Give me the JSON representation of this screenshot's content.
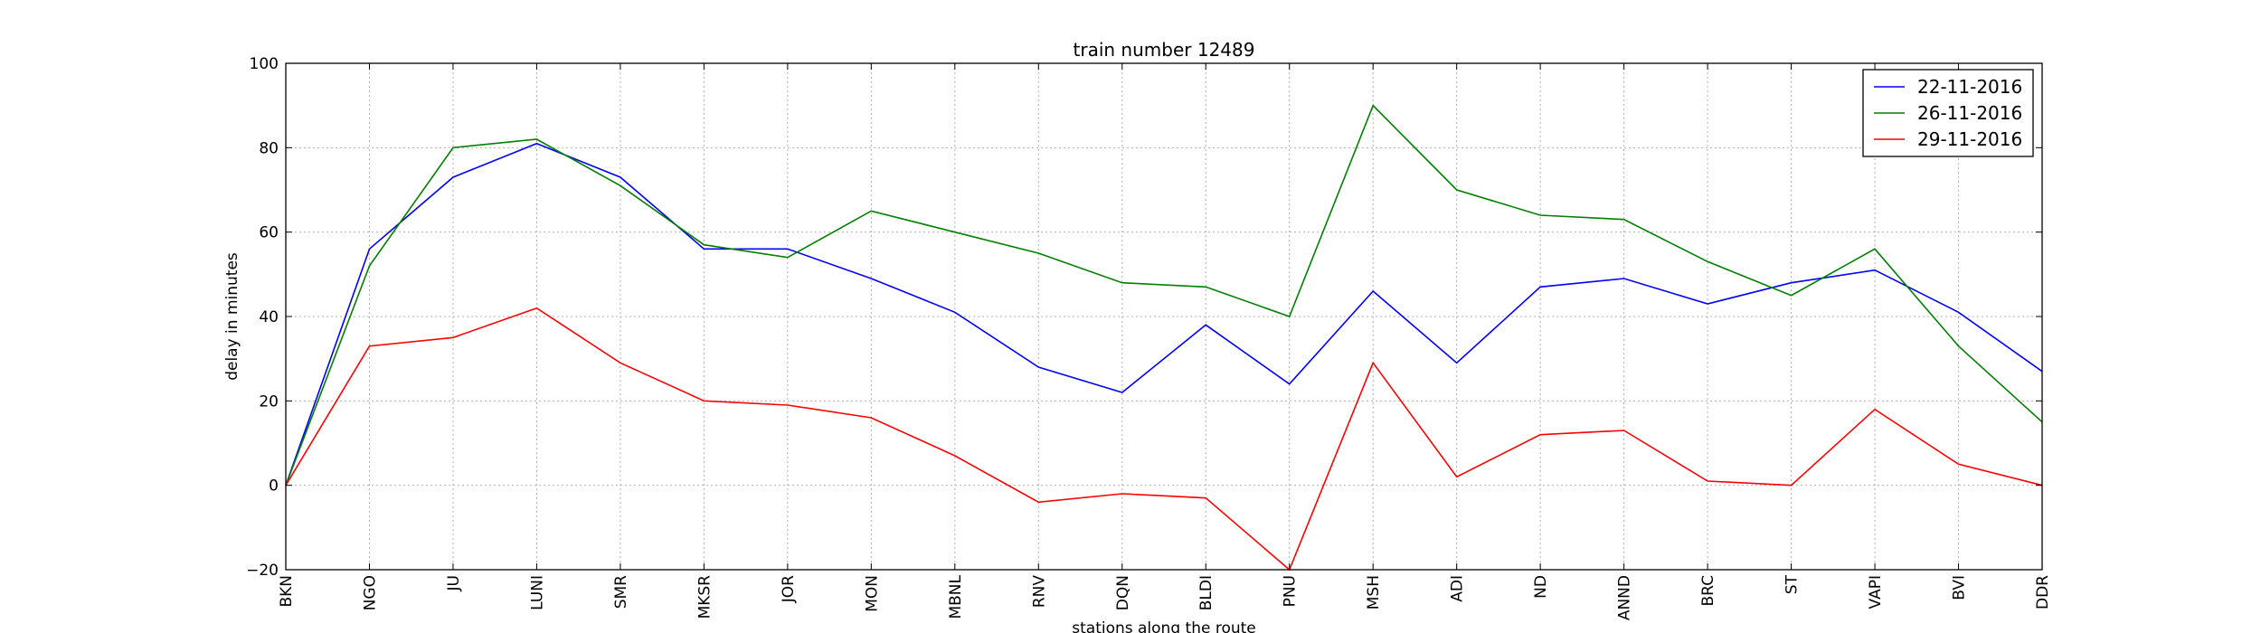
{
  "chart_data": {
    "type": "line",
    "title": "train number 12489",
    "xlabel": "stations along the route",
    "ylabel": "delay in minutes",
    "categories": [
      "BKN",
      "NGO",
      "JU",
      "LUNI",
      "SMR",
      "MKSR",
      "JOR",
      "MON",
      "MBNL",
      "RNV",
      "DQN",
      "BLDI",
      "PNU",
      "MSH",
      "ADI",
      "ND",
      "ANND",
      "BRC",
      "ST",
      "VAPI",
      "BVI",
      "DDR"
    ],
    "ylim": [
      -20,
      100
    ],
    "yticks": [
      -20,
      0,
      20,
      40,
      60,
      80,
      100
    ],
    "grid": true,
    "legend_position": "top-right",
    "series": [
      {
        "name": "22-11-2016",
        "color": "#0000ff",
        "values": [
          0,
          56,
          73,
          81,
          73,
          56,
          56,
          49,
          41,
          28,
          22,
          38,
          24,
          46,
          29,
          47,
          49,
          43,
          48,
          51,
          41,
          27
        ]
      },
      {
        "name": "26-11-2016",
        "color": "#008000",
        "values": [
          0,
          52,
          80,
          82,
          71,
          57,
          54,
          65,
          60,
          55,
          48,
          47,
          40,
          90,
          70,
          64,
          63,
          53,
          45,
          56,
          33,
          15
        ]
      },
      {
        "name": "29-11-2016",
        "color": "#ff0000",
        "values": [
          0,
          33,
          35,
          42,
          29,
          20,
          19,
          16,
          7,
          -4,
          -2,
          -3,
          -20,
          29,
          2,
          12,
          13,
          1,
          0,
          18,
          5,
          0
        ]
      }
    ]
  }
}
